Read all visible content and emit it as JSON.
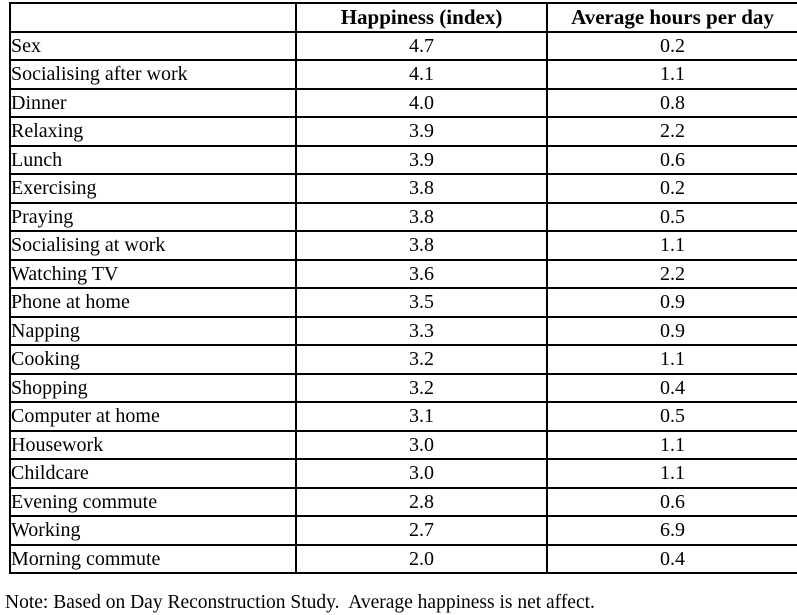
{
  "table": {
    "columns": [
      "",
      "Happiness (index)",
      "Average hours per day"
    ],
    "rows": [
      {
        "activity": "Sex",
        "happiness": "4.7",
        "hours": "0.2"
      },
      {
        "activity": "Socialising after work",
        "happiness": "4.1",
        "hours": "1.1"
      },
      {
        "activity": "Dinner",
        "happiness": "4.0",
        "hours": "0.8"
      },
      {
        "activity": "Relaxing",
        "happiness": "3.9",
        "hours": "2.2"
      },
      {
        "activity": "Lunch",
        "happiness": "3.9",
        "hours": "0.6"
      },
      {
        "activity": "Exercising",
        "happiness": "3.8",
        "hours": "0.2"
      },
      {
        "activity": "Praying",
        "happiness": "3.8",
        "hours": "0.5"
      },
      {
        "activity": "Socialising at work",
        "happiness": "3.8",
        "hours": "1.1"
      },
      {
        "activity": "Watching TV",
        "happiness": "3.6",
        "hours": "2.2"
      },
      {
        "activity": "Phone at home",
        "happiness": "3.5",
        "hours": "0.9"
      },
      {
        "activity": "Napping",
        "happiness": "3.3",
        "hours": "0.9"
      },
      {
        "activity": "Cooking",
        "happiness": "3.2",
        "hours": "1.1"
      },
      {
        "activity": "Shopping",
        "happiness": "3.2",
        "hours": "0.4"
      },
      {
        "activity": "Computer at home",
        "happiness": "3.1",
        "hours": "0.5"
      },
      {
        "activity": "Housework",
        "happiness": "3.0",
        "hours": "1.1"
      },
      {
        "activity": "Childcare",
        "happiness": "3.0",
        "hours": "1.1"
      },
      {
        "activity": "Evening commute",
        "happiness": "2.8",
        "hours": "0.6"
      },
      {
        "activity": "Working",
        "happiness": "2.7",
        "hours": "6.9"
      },
      {
        "activity": "Morning commute",
        "happiness": "2.0",
        "hours": "0.4"
      }
    ]
  },
  "footnote": "Note: Based on Day Reconstruction Study.  Average happiness is net affect.",
  "colors": {
    "background": "#ffffff",
    "border": "#000000",
    "text": "#000000"
  }
}
